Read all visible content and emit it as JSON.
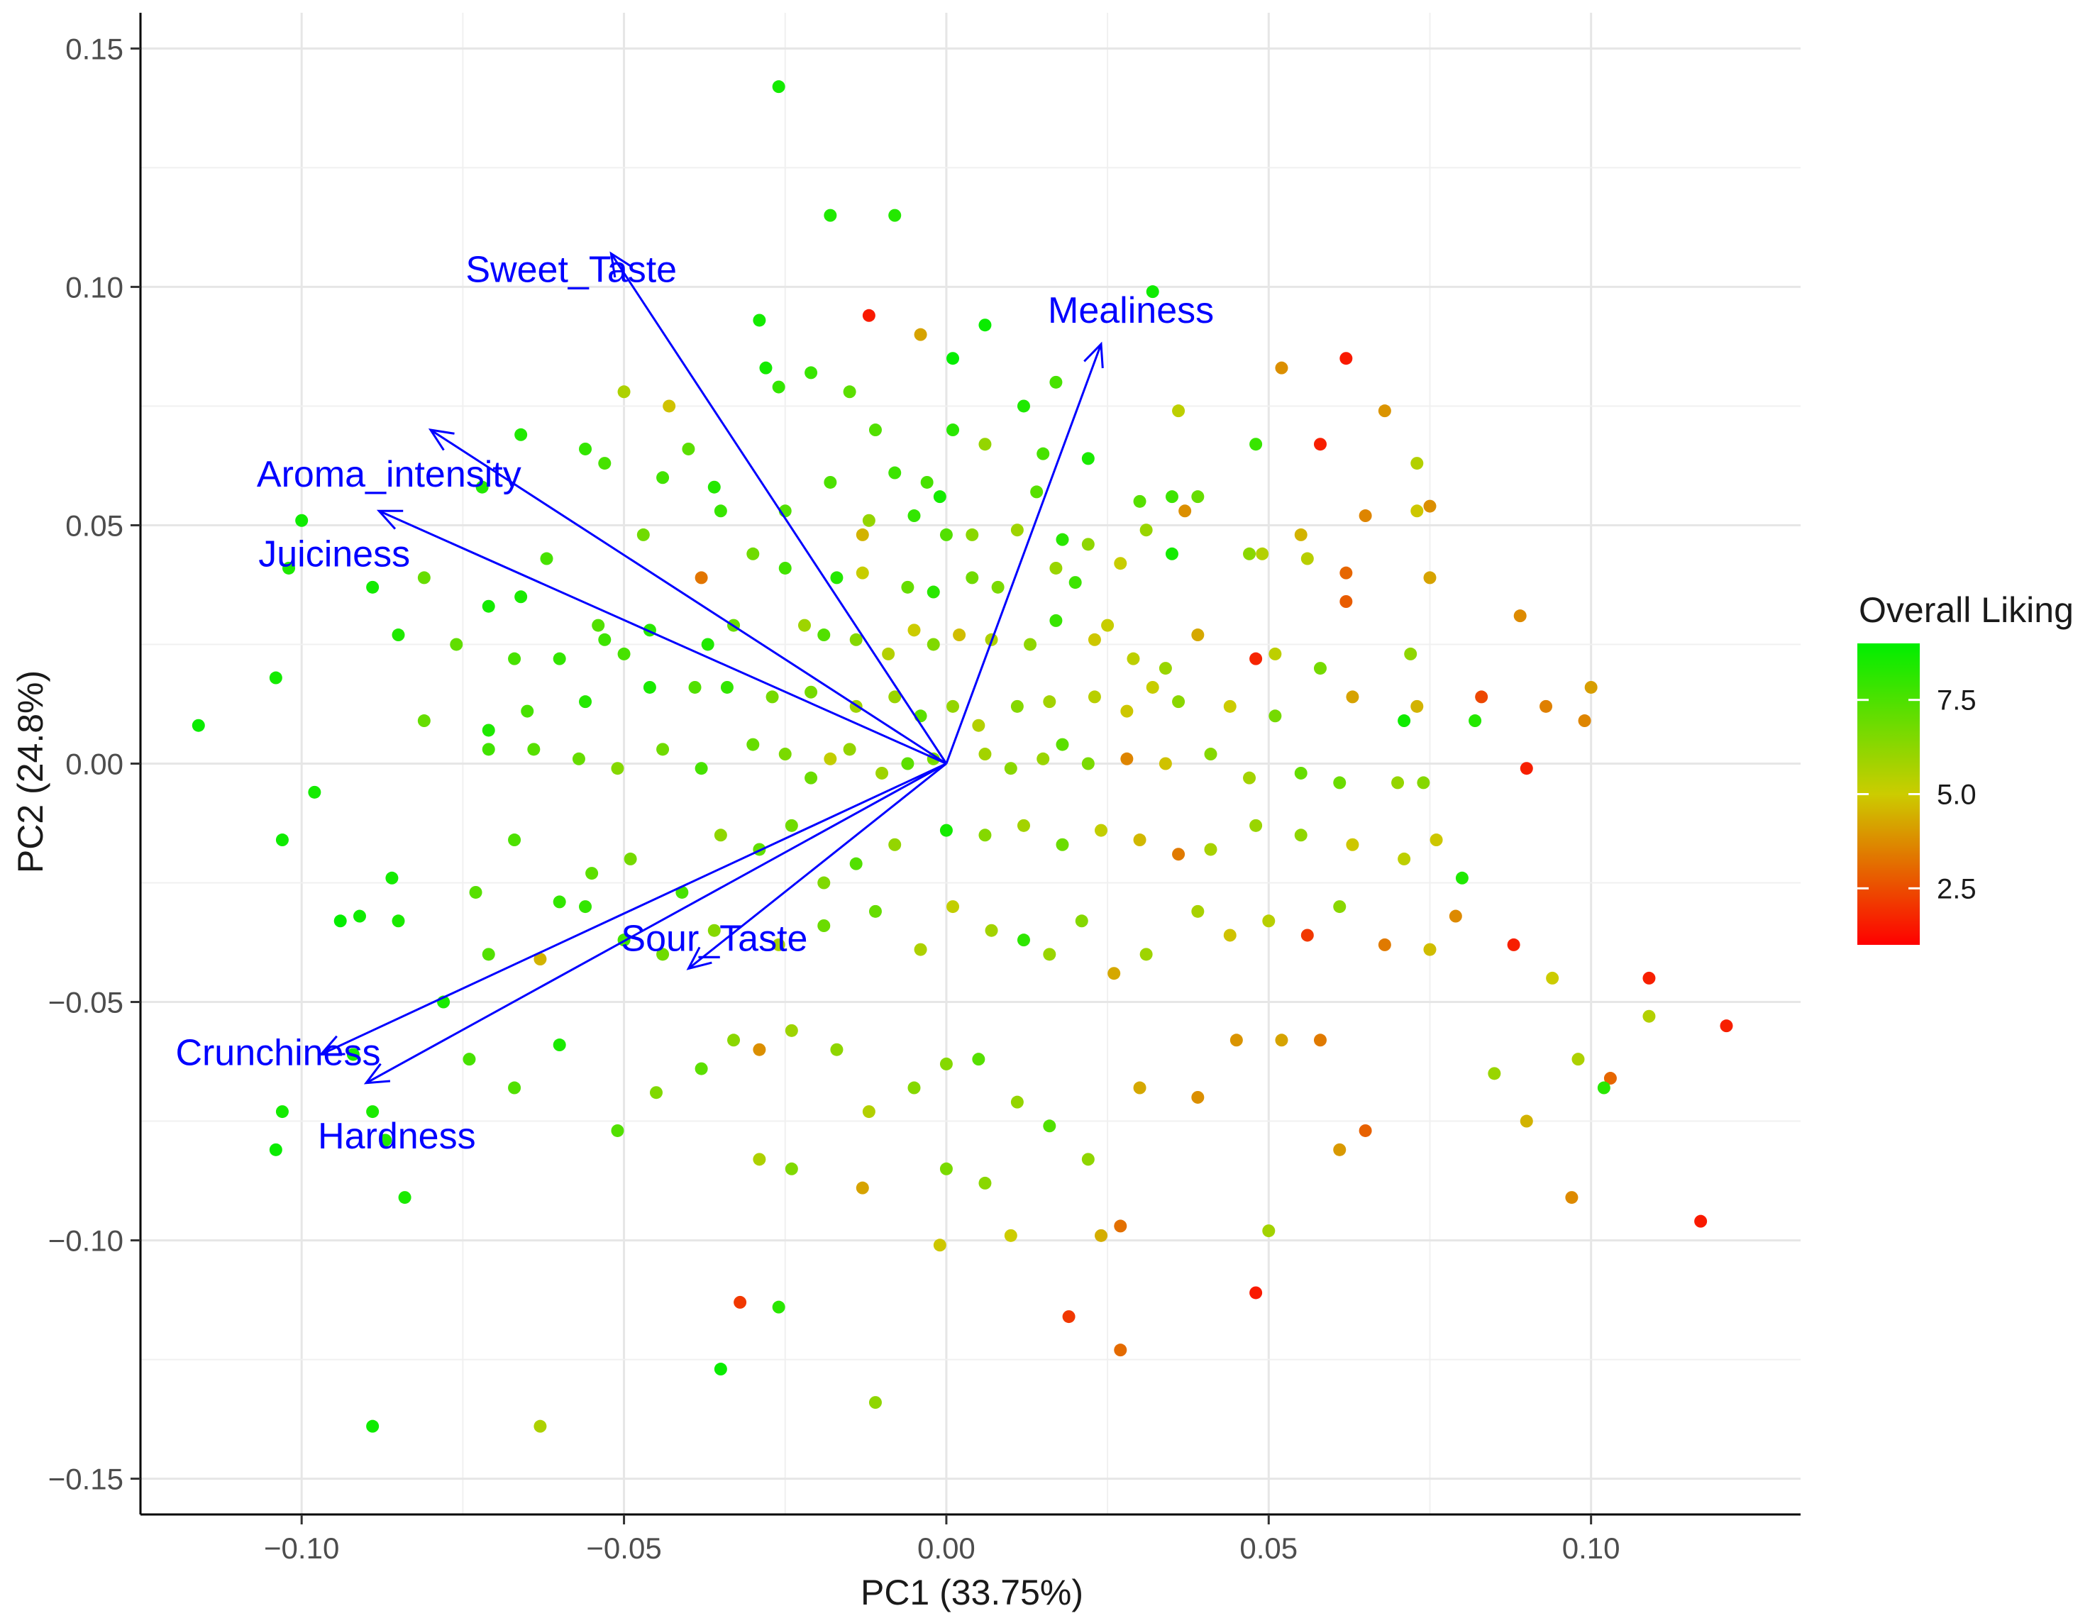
{
  "chart_data": {
    "type": "scatter",
    "subtype": "pca-biplot",
    "xlabel": "PC1 (33.75%)",
    "ylabel": "PC2 (24.8%)",
    "xlim": [
      -0.125,
      0.1325
    ],
    "ylim": [
      -0.1575,
      0.1575
    ],
    "x_ticks": [
      -0.1,
      -0.05,
      0.0,
      0.05,
      0.1
    ],
    "x_tick_labels": [
      "−0.10",
      "−0.05",
      "0.00",
      "0.05",
      "0.10"
    ],
    "y_ticks": [
      -0.15,
      -0.1,
      -0.05,
      0.0,
      0.05,
      0.1,
      0.15
    ],
    "y_tick_labels": [
      "−0.15",
      "−0.10",
      "−0.05",
      "0.00",
      "0.05",
      "0.10",
      "0.15"
    ],
    "grid": true,
    "legend": {
      "title": "Overall Liking",
      "placement": "right",
      "min": 1.0,
      "max": 9.0,
      "ticks": [
        2.5,
        5.0,
        7.5
      ],
      "tick_labels": [
        "2.5",
        "5.0",
        "7.5"
      ],
      "colors": {
        "low": "#ff0000",
        "mid": "#cccc00",
        "high": "#00ee00"
      }
    },
    "loadings": [
      {
        "name": "Sweet_Taste",
        "x": -0.052,
        "y": 0.107
      },
      {
        "name": "Mealiness",
        "x": 0.024,
        "y": 0.088
      },
      {
        "name": "Aroma_intensity",
        "x": -0.08,
        "y": 0.07
      },
      {
        "name": "Juiciness",
        "x": -0.088,
        "y": 0.053
      },
      {
        "name": "Sour_Taste",
        "x": -0.04,
        "y": -0.043
      },
      {
        "name": "Crunchiness",
        "x": -0.097,
        "y": -0.061
      },
      {
        "name": "Hardness",
        "x": -0.09,
        "y": -0.067
      }
    ],
    "points": [
      [
        -0.026,
        0.142,
        8.6
      ],
      [
        -0.018,
        0.115,
        8.4
      ],
      [
        -0.008,
        0.115,
        8.3
      ],
      [
        -0.012,
        0.094,
        1.5
      ],
      [
        -0.029,
        0.093,
        8.6
      ],
      [
        -0.004,
        0.09,
        4.2
      ],
      [
        0.006,
        0.092,
        8.8
      ],
      [
        0.032,
        0.099,
        8.7
      ],
      [
        -0.028,
        0.083,
        8.6
      ],
      [
        -0.021,
        0.082,
        7.9
      ],
      [
        0.001,
        0.085,
        8.9
      ],
      [
        0.017,
        0.08,
        7.6
      ],
      [
        -0.05,
        0.078,
        5.6
      ],
      [
        -0.043,
        0.075,
        4.8
      ],
      [
        -0.015,
        0.078,
        7.2
      ],
      [
        0.012,
        0.075,
        8.4
      ],
      [
        -0.026,
        0.079,
        8.0
      ],
      [
        0.052,
        0.083,
        3.8
      ],
      [
        0.062,
        0.085,
        1.5
      ],
      [
        0.068,
        0.074,
        3.9
      ],
      [
        -0.066,
        0.069,
        8.4
      ],
      [
        -0.056,
        0.066,
        8.0
      ],
      [
        -0.053,
        0.063,
        7.6
      ],
      [
        -0.04,
        0.066,
        7.2
      ],
      [
        -0.011,
        0.07,
        7.4
      ],
      [
        0.001,
        0.07,
        8.2
      ],
      [
        0.006,
        0.067,
        6.1
      ],
      [
        0.015,
        0.065,
        7.6
      ],
      [
        0.022,
        0.064,
        8.5
      ],
      [
        0.036,
        0.074,
        5.3
      ],
      [
        0.048,
        0.067,
        7.9
      ],
      [
        0.058,
        0.067,
        1.6
      ],
      [
        -0.1,
        0.051,
        8.7
      ],
      [
        -0.072,
        0.058,
        8.3
      ],
      [
        -0.044,
        0.06,
        7.7
      ],
      [
        -0.036,
        0.058,
        8.3
      ],
      [
        -0.018,
        0.059,
        7.5
      ],
      [
        -0.008,
        0.061,
        7.8
      ],
      [
        -0.003,
        0.059,
        7.6
      ],
      [
        -0.001,
        0.056,
        8.6
      ],
      [
        0.014,
        0.057,
        7.3
      ],
      [
        0.03,
        0.055,
        7.3
      ],
      [
        0.035,
        0.056,
        7.8
      ],
      [
        0.039,
        0.056,
        7.0
      ],
      [
        0.073,
        0.063,
        5.5
      ],
      [
        -0.102,
        0.041,
        8.4
      ],
      [
        -0.089,
        0.037,
        8.6
      ],
      [
        -0.081,
        0.039,
        7.0
      ],
      [
        -0.062,
        0.043,
        7.6
      ],
      [
        -0.047,
        0.048,
        6.8
      ],
      [
        -0.035,
        0.053,
        7.9
      ],
      [
        -0.025,
        0.053,
        7.4
      ],
      [
        -0.012,
        0.051,
        6.1
      ],
      [
        -0.013,
        0.048,
        4.5
      ],
      [
        -0.005,
        0.052,
        8.0
      ],
      [
        0.0,
        0.048,
        7.4
      ],
      [
        0.004,
        0.048,
        6.3
      ],
      [
        0.011,
        0.049,
        5.9
      ],
      [
        0.018,
        0.047,
        8.2
      ],
      [
        0.022,
        0.046,
        6.2
      ],
      [
        0.031,
        0.049,
        6.0
      ],
      [
        0.037,
        0.053,
        3.8
      ],
      [
        0.055,
        0.048,
        4.5
      ],
      [
        0.065,
        0.052,
        3.6
      ],
      [
        0.073,
        0.053,
        4.9
      ],
      [
        0.075,
        0.054,
        3.8
      ],
      [
        -0.071,
        0.033,
        8.6
      ],
      [
        -0.066,
        0.035,
        8.5
      ],
      [
        -0.038,
        0.039,
        3.3
      ],
      [
        -0.03,
        0.044,
        6.8
      ],
      [
        -0.025,
        0.041,
        7.7
      ],
      [
        -0.017,
        0.039,
        8.3
      ],
      [
        -0.013,
        0.04,
        5.1
      ],
      [
        -0.006,
        0.037,
        7.0
      ],
      [
        -0.002,
        0.036,
        8.2
      ],
      [
        0.004,
        0.039,
        6.8
      ],
      [
        0.008,
        0.037,
        6.6
      ],
      [
        0.017,
        0.041,
        6.0
      ],
      [
        0.02,
        0.038,
        7.8
      ],
      [
        0.027,
        0.042,
        5.1
      ],
      [
        0.035,
        0.044,
        8.6
      ],
      [
        0.047,
        0.044,
        6.3
      ],
      [
        0.049,
        0.044,
        5.5
      ],
      [
        0.056,
        0.043,
        5.4
      ],
      [
        0.062,
        0.04,
        3.0
      ],
      [
        0.062,
        0.034,
        2.8
      ],
      [
        0.075,
        0.039,
        4.2
      ],
      [
        -0.116,
        0.008,
        8.8
      ],
      [
        -0.104,
        0.018,
        8.6
      ],
      [
        -0.085,
        0.027,
        8.4
      ],
      [
        -0.076,
        0.025,
        7.1
      ],
      [
        -0.067,
        0.022,
        7.6
      ],
      [
        -0.06,
        0.022,
        8.0
      ],
      [
        -0.054,
        0.029,
        7.4
      ],
      [
        -0.053,
        0.026,
        7.8
      ],
      [
        -0.05,
        0.023,
        7.6
      ],
      [
        -0.046,
        0.028,
        8.2
      ],
      [
        -0.037,
        0.025,
        8.4
      ],
      [
        -0.033,
        0.029,
        7.0
      ],
      [
        -0.022,
        0.029,
        5.9
      ],
      [
        -0.019,
        0.027,
        7.4
      ],
      [
        -0.014,
        0.026,
        6.4
      ],
      [
        -0.009,
        0.023,
        5.5
      ],
      [
        -0.005,
        0.028,
        5.0
      ],
      [
        -0.002,
        0.025,
        6.5
      ],
      [
        0.002,
        0.027,
        4.7
      ],
      [
        0.007,
        0.026,
        5.6
      ],
      [
        0.013,
        0.025,
        6.2
      ],
      [
        0.017,
        0.03,
        7.9
      ],
      [
        0.023,
        0.026,
        4.9
      ],
      [
        0.025,
        0.029,
        5.1
      ],
      [
        0.029,
        0.022,
        5.3
      ],
      [
        0.034,
        0.02,
        6.0
      ],
      [
        0.039,
        0.027,
        4.3
      ],
      [
        0.048,
        0.022,
        1.7
      ],
      [
        0.051,
        0.023,
        5.3
      ],
      [
        0.058,
        0.02,
        6.7
      ],
      [
        0.072,
        0.023,
        6.2
      ],
      [
        0.089,
        0.031,
        3.7
      ],
      [
        0.1,
        0.016,
        4.1
      ],
      [
        -0.081,
        0.009,
        7.0
      ],
      [
        -0.071,
        0.007,
        8.4
      ],
      [
        -0.065,
        0.011,
        7.6
      ],
      [
        -0.056,
        0.013,
        8.3
      ],
      [
        -0.046,
        0.016,
        8.5
      ],
      [
        -0.039,
        0.016,
        7.4
      ],
      [
        -0.034,
        0.016,
        8.0
      ],
      [
        -0.027,
        0.014,
        6.7
      ],
      [
        -0.021,
        0.015,
        6.7
      ],
      [
        -0.014,
        0.012,
        5.9
      ],
      [
        -0.008,
        0.014,
        6.0
      ],
      [
        -0.004,
        0.01,
        7.2
      ],
      [
        0.001,
        0.012,
        6.1
      ],
      [
        0.005,
        0.008,
        5.5
      ],
      [
        0.011,
        0.012,
        6.4
      ],
      [
        0.016,
        0.013,
        5.8
      ],
      [
        0.023,
        0.014,
        5.4
      ],
      [
        0.028,
        0.011,
        4.9
      ],
      [
        0.032,
        0.016,
        5.1
      ],
      [
        0.036,
        0.013,
        6.3
      ],
      [
        0.044,
        0.012,
        5.0
      ],
      [
        0.051,
        0.01,
        6.7
      ],
      [
        0.063,
        0.014,
        4.2
      ],
      [
        0.073,
        0.012,
        4.5
      ],
      [
        0.083,
        0.014,
        2.4
      ],
      [
        0.093,
        0.012,
        3.5
      ],
      [
        0.099,
        0.009,
        3.6
      ],
      [
        0.09,
        -0.001,
        1.6
      ],
      [
        -0.103,
        -0.016,
        8.7
      ],
      [
        -0.098,
        -0.006,
        8.6
      ],
      [
        -0.071,
        0.003,
        7.7
      ],
      [
        -0.064,
        0.003,
        7.3
      ],
      [
        -0.057,
        0.001,
        7.0
      ],
      [
        -0.051,
        -0.001,
        6.4
      ],
      [
        -0.044,
        0.003,
        6.8
      ],
      [
        -0.038,
        -0.001,
        7.6
      ],
      [
        -0.03,
        0.004,
        7.0
      ],
      [
        -0.025,
        0.002,
        6.6
      ],
      [
        -0.021,
        -0.003,
        6.9
      ],
      [
        -0.018,
        0.001,
        5.2
      ],
      [
        -0.015,
        0.003,
        6.1
      ],
      [
        -0.01,
        -0.002,
        5.9
      ],
      [
        -0.006,
        0.0,
        7.2
      ],
      [
        -0.002,
        0.001,
        6.6
      ],
      [
        0.006,
        0.002,
        5.8
      ],
      [
        0.01,
        -0.001,
        6.3
      ],
      [
        0.015,
        0.001,
        6.0
      ],
      [
        0.018,
        0.004,
        7.2
      ],
      [
        0.022,
        0.0,
        6.6
      ],
      [
        0.028,
        0.001,
        3.6
      ],
      [
        0.034,
        0.0,
        4.8
      ],
      [
        0.041,
        0.002,
        6.4
      ],
      [
        0.047,
        -0.003,
        5.8
      ],
      [
        0.055,
        -0.002,
        7.0
      ],
      [
        0.061,
        -0.004,
        6.9
      ],
      [
        0.07,
        -0.004,
        6.1
      ],
      [
        0.074,
        -0.004,
        6.4
      ],
      [
        0.082,
        0.009,
        8.3
      ],
      [
        0.071,
        0.009,
        8.7
      ],
      [
        -0.091,
        -0.032,
        8.7
      ],
      [
        -0.085,
        -0.033,
        8.5
      ],
      [
        -0.073,
        -0.027,
        7.3
      ],
      [
        -0.067,
        -0.016,
        7.5
      ],
      [
        -0.06,
        -0.029,
        8.0
      ],
      [
        -0.055,
        -0.023,
        7.2
      ],
      [
        -0.049,
        -0.02,
        6.7
      ],
      [
        -0.041,
        -0.027,
        7.6
      ],
      [
        -0.035,
        -0.015,
        6.2
      ],
      [
        -0.029,
        -0.018,
        7.1
      ],
      [
        -0.024,
        -0.013,
        6.8
      ],
      [
        -0.019,
        -0.025,
        6.5
      ],
      [
        -0.014,
        -0.021,
        7.4
      ],
      [
        -0.008,
        -0.017,
        6.1
      ],
      [
        0.0,
        -0.014,
        8.6
      ],
      [
        0.006,
        -0.015,
        6.4
      ],
      [
        0.012,
        -0.013,
        5.8
      ],
      [
        0.018,
        -0.017,
        6.9
      ],
      [
        0.024,
        -0.014,
        5.2
      ],
      [
        0.03,
        -0.016,
        4.6
      ],
      [
        0.036,
        -0.019,
        3.4
      ],
      [
        0.041,
        -0.018,
        5.7
      ],
      [
        0.048,
        -0.013,
        6.0
      ],
      [
        0.055,
        -0.015,
        6.2
      ],
      [
        0.063,
        -0.017,
        4.9
      ],
      [
        0.071,
        -0.02,
        5.3
      ],
      [
        0.076,
        -0.016,
        4.9
      ],
      [
        0.08,
        -0.024,
        8.4
      ],
      [
        -0.094,
        -0.033,
        8.9
      ],
      [
        -0.086,
        -0.024,
        8.6
      ],
      [
        -0.078,
        -0.05,
        8.5
      ],
      [
        -0.071,
        -0.04,
        7.4
      ],
      [
        -0.063,
        -0.041,
        4.5
      ],
      [
        -0.056,
        -0.03,
        8.0
      ],
      [
        -0.05,
        -0.037,
        7.7
      ],
      [
        -0.044,
        -0.04,
        6.8
      ],
      [
        -0.036,
        -0.035,
        6.4
      ],
      [
        -0.026,
        -0.038,
        5.7
      ],
      [
        -0.019,
        -0.034,
        6.9
      ],
      [
        -0.011,
        -0.031,
        7.0
      ],
      [
        -0.004,
        -0.039,
        5.6
      ],
      [
        0.001,
        -0.03,
        5.2
      ],
      [
        0.007,
        -0.035,
        5.8
      ],
      [
        0.012,
        -0.037,
        8.1
      ],
      [
        0.016,
        -0.04,
        6.0
      ],
      [
        0.021,
        -0.033,
        6.4
      ],
      [
        0.026,
        -0.044,
        4.3
      ],
      [
        0.031,
        -0.04,
        5.9
      ],
      [
        0.039,
        -0.031,
        5.7
      ],
      [
        0.044,
        -0.036,
        4.8
      ],
      [
        0.05,
        -0.033,
        5.4
      ],
      [
        0.056,
        -0.036,
        2.1
      ],
      [
        0.061,
        -0.03,
        6.3
      ],
      [
        0.068,
        -0.038,
        3.4
      ],
      [
        0.075,
        -0.039,
        4.7
      ],
      [
        0.079,
        -0.032,
        3.7
      ],
      [
        0.088,
        -0.038,
        1.6
      ],
      [
        0.094,
        -0.045,
        5.0
      ],
      [
        0.109,
        -0.045,
        1.6
      ],
      [
        -0.089,
        -0.073,
        8.5
      ],
      [
        -0.087,
        -0.079,
        8.4
      ],
      [
        -0.084,
        -0.091,
        8.5
      ],
      [
        -0.104,
        -0.081,
        8.8
      ],
      [
        -0.103,
        -0.073,
        8.6
      ],
      [
        -0.092,
        -0.061,
        8.5
      ],
      [
        -0.074,
        -0.062,
        7.6
      ],
      [
        -0.067,
        -0.068,
        7.4
      ],
      [
        -0.06,
        -0.059,
        8.5
      ],
      [
        -0.051,
        -0.077,
        7.4
      ],
      [
        -0.045,
        -0.069,
        6.5
      ],
      [
        -0.038,
        -0.064,
        7.2
      ],
      [
        -0.033,
        -0.058,
        6.3
      ],
      [
        -0.029,
        -0.06,
        3.8
      ],
      [
        -0.024,
        -0.056,
        5.9
      ],
      [
        -0.017,
        -0.06,
        6.2
      ],
      [
        -0.012,
        -0.073,
        5.5
      ],
      [
        -0.005,
        -0.068,
        6.4
      ],
      [
        0.0,
        -0.063,
        6.4
      ],
      [
        0.005,
        -0.062,
        7.3
      ],
      [
        0.011,
        -0.071,
        6.1
      ],
      [
        0.016,
        -0.076,
        7.4
      ],
      [
        0.022,
        -0.083,
        6.2
      ],
      [
        0.03,
        -0.068,
        4.3
      ],
      [
        0.039,
        -0.07,
        3.8
      ],
      [
        0.045,
        -0.058,
        3.9
      ],
      [
        0.052,
        -0.058,
        4.2
      ],
      [
        0.058,
        -0.058,
        3.4
      ],
      [
        0.065,
        -0.077,
        2.9
      ],
      [
        0.085,
        -0.065,
        6.0
      ],
      [
        0.09,
        -0.075,
        4.5
      ],
      [
        0.098,
        -0.062,
        5.6
      ],
      [
        0.103,
        -0.066,
        3.0
      ],
      [
        0.102,
        -0.068,
        8.2
      ],
      [
        0.109,
        -0.053,
        5.5
      ],
      [
        0.121,
        -0.055,
        1.6
      ],
      [
        -0.029,
        -0.083,
        5.6
      ],
      [
        -0.024,
        -0.085,
        6.5
      ],
      [
        -0.013,
        -0.089,
        4.2
      ],
      [
        0.0,
        -0.085,
        6.6
      ],
      [
        0.006,
        -0.088,
        6.3
      ],
      [
        0.01,
        -0.099,
        5.0
      ],
      [
        0.024,
        -0.099,
        4.4
      ],
      [
        0.027,
        -0.097,
        3.2
      ],
      [
        0.061,
        -0.081,
        4.0
      ],
      [
        0.097,
        -0.091,
        3.7
      ],
      [
        0.117,
        -0.096,
        1.5
      ],
      [
        -0.032,
        -0.113,
        2.1
      ],
      [
        -0.026,
        -0.114,
        8.2
      ],
      [
        -0.035,
        -0.127,
        8.8
      ],
      [
        -0.011,
        -0.134,
        6.2
      ],
      [
        0.019,
        -0.116,
        2.1
      ],
      [
        0.027,
        -0.123,
        3.1
      ],
      [
        0.048,
        -0.111,
        1.5
      ],
      [
        -0.063,
        -0.139,
        5.6
      ],
      [
        -0.089,
        -0.139,
        8.7
      ],
      [
        0.05,
        -0.098,
        5.8
      ],
      [
        -0.001,
        -0.101,
        4.9
      ]
    ]
  }
}
